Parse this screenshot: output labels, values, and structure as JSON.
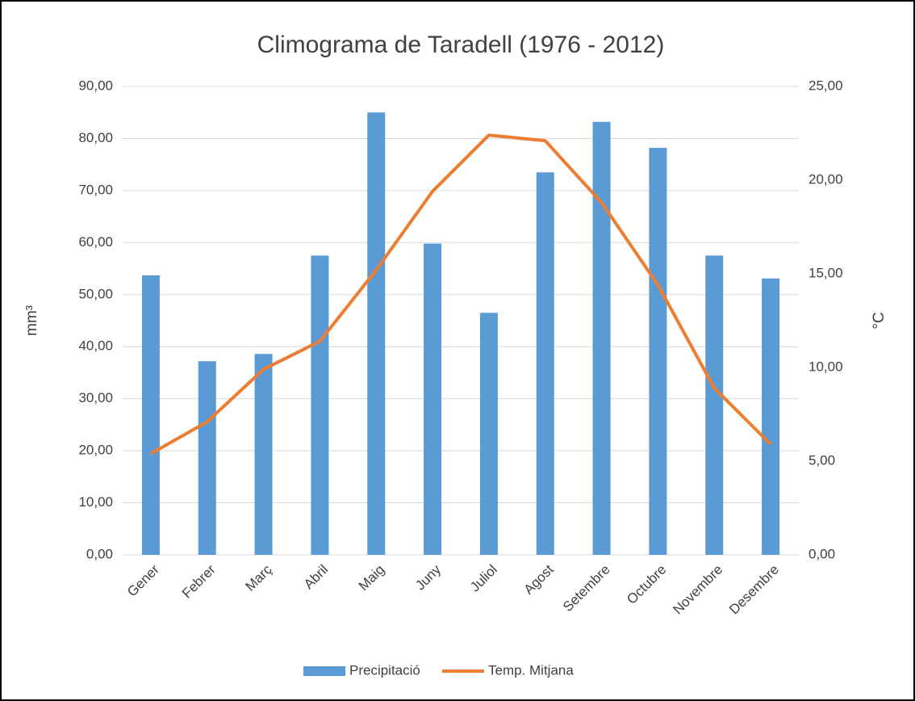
{
  "chart_data": {
    "type": "bar_line",
    "title": "Climograma de Taradell (1976 - 2012)",
    "ylabel": "mm³",
    "y2label": "°C",
    "categories": [
      "Gener",
      "Febrer",
      "Març",
      "Abril",
      "Maig",
      "Juny",
      "Juliol",
      "Agost",
      "Setembre",
      "Octubre",
      "Novembre",
      "Desembre"
    ],
    "series": [
      {
        "name": "Precipitació",
        "type": "bar",
        "color": "#5b9bd5",
        "values": [
          53.7,
          37.2,
          38.6,
          57.5,
          85.0,
          59.8,
          46.5,
          73.5,
          83.2,
          78.2,
          57.5,
          53.1
        ]
      },
      {
        "name": "Temp. Mitjana",
        "type": "line",
        "axis": "y2",
        "color": "#ed7d31",
        "values": [
          5.4,
          7.1,
          9.9,
          11.4,
          15.2,
          19.4,
          22.4,
          22.1,
          18.8,
          14.4,
          8.9,
          5.9
        ]
      }
    ],
    "ylim": [
      0,
      90
    ],
    "yticks": [
      {
        "value": 0,
        "label": "0,00"
      },
      {
        "value": 10,
        "label": "10,00"
      },
      {
        "value": 20,
        "label": "20,00"
      },
      {
        "value": 30,
        "label": "30,00"
      },
      {
        "value": 40,
        "label": "40,00"
      },
      {
        "value": 50,
        "label": "50,00"
      },
      {
        "value": 60,
        "label": "60,00"
      },
      {
        "value": 70,
        "label": "70,00"
      },
      {
        "value": 80,
        "label": "80,00"
      },
      {
        "value": 90,
        "label": "90,00"
      }
    ],
    "y2lim": [
      0,
      25
    ],
    "y2ticks": [
      {
        "value": 0,
        "label": "0,00"
      },
      {
        "value": 5,
        "label": "5,00"
      },
      {
        "value": 10,
        "label": "10,00"
      },
      {
        "value": 15,
        "label": "15,00"
      },
      {
        "value": 20,
        "label": "20,00"
      },
      {
        "value": 25,
        "label": "25,00"
      }
    ],
    "grid": true,
    "legend": "bottom"
  }
}
